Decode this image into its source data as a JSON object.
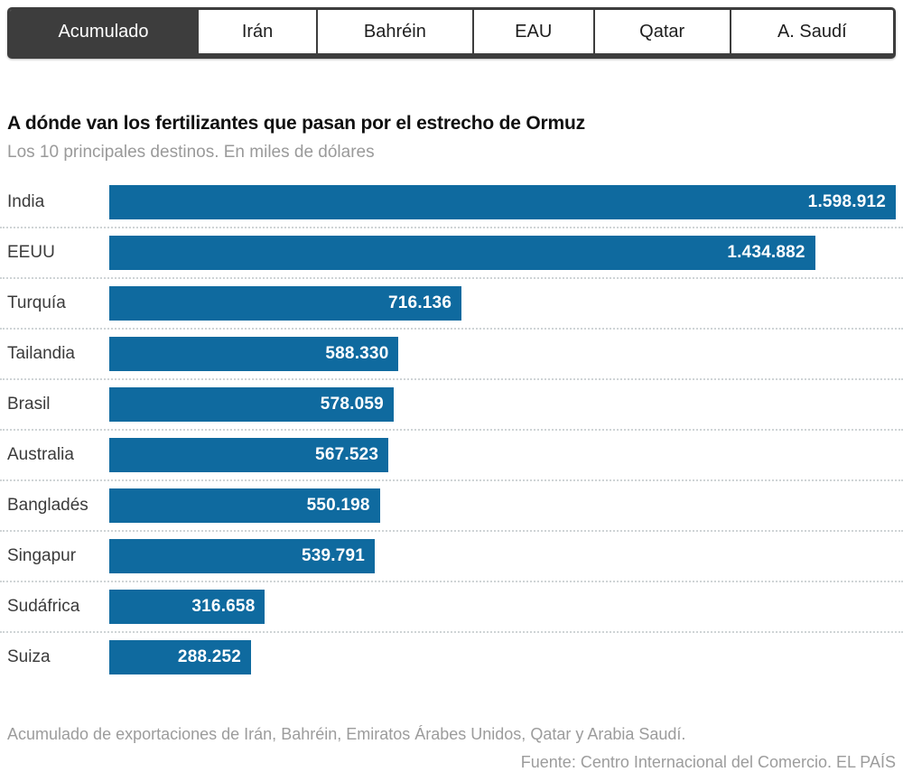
{
  "tabs": {
    "items": [
      {
        "key": "acumulado",
        "label": "Acumulado",
        "selected": true
      },
      {
        "key": "iran",
        "label": "Irán",
        "selected": false
      },
      {
        "key": "bahrein",
        "label": "Bahréin",
        "selected": false
      },
      {
        "key": "eau",
        "label": "EAU",
        "selected": false
      },
      {
        "key": "qatar",
        "label": "Qatar",
        "selected": false
      },
      {
        "key": "a-saudi",
        "label": "A. Saudí",
        "selected": false
      }
    ]
  },
  "header": {
    "title": "A dónde van los fertilizantes que pasan por el estrecho de Ormuz",
    "subtitle": "Los 10 principales destinos. En miles de dólares"
  },
  "chart_data": {
    "type": "bar",
    "orientation": "horizontal",
    "title": "A dónde van los fertilizantes que pasan por el estrecho de Ormuz",
    "subtitle": "Los 10 principales destinos. En miles de dólares",
    "unit": "miles de dólares",
    "categories": [
      "India",
      "EEUU",
      "Turquía",
      "Tailandia",
      "Brasil",
      "Australia",
      "Bangladés",
      "Singapur",
      "Sudáfrica",
      "Suiza"
    ],
    "values": [
      1598912,
      1434882,
      716136,
      588330,
      578059,
      567523,
      550198,
      539791,
      316658,
      288252
    ],
    "value_labels": [
      "1.598.912",
      "1.434.882",
      "716.136",
      "588.330",
      "578.059",
      "567.523",
      "550.198",
      "539.791",
      "316.658",
      "288.252"
    ],
    "xlim": [
      0,
      1598912
    ],
    "grid": "dotted-row-separators",
    "legend": "none",
    "bar_color": "#0f6a9f",
    "value_label_position": "inside-end"
  },
  "footer": {
    "note": "Acumulado de exportaciones de Irán, Bahréin, Emiratos Árabes Unidos, Qatar y Arabia Saudí.",
    "source": "Fuente: Centro Internacional del Comercio. EL PAÍS"
  },
  "colors": {
    "bar": "#0f6a9f",
    "selected_tab_bg": "#3d3d3d",
    "selected_tab_text": "#ffffff",
    "tab_text": "#1e1e1e",
    "title_text": "#111111",
    "muted_text": "#9c9c9c"
  }
}
